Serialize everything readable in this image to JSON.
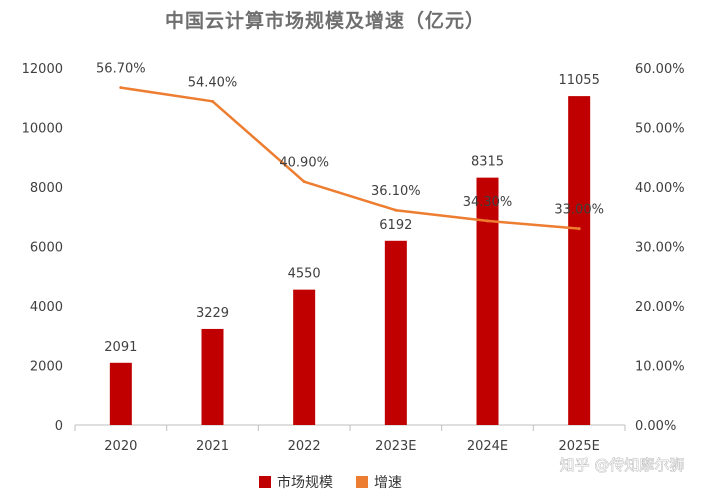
{
  "chart_data": {
    "type": "bar",
    "title": "中国云计算市场规模及增速（亿元）",
    "categories": [
      "2020",
      "2021",
      "2022",
      "2023E",
      "2024E",
      "2025E"
    ],
    "series": [
      {
        "name": "市场规模",
        "kind": "bar",
        "axis": "left",
        "color": "#c00000",
        "values": [
          2091,
          3229,
          4550,
          6192,
          8315,
          11055
        ],
        "labels": [
          "2091",
          "3229",
          "4550",
          "6192",
          "8315",
          "11055"
        ]
      },
      {
        "name": "增速",
        "kind": "line",
        "axis": "right",
        "color": "#ed7d31",
        "values": [
          56.7,
          54.4,
          40.9,
          36.1,
          34.3,
          33.0
        ],
        "labels": [
          "56.70%",
          "54.40%",
          "40.90%",
          "36.10%",
          "34.30%",
          "33.00%"
        ]
      }
    ],
    "y_left": {
      "min": 0,
      "max": 12000,
      "ticks": [
        "0",
        "2000",
        "4000",
        "6000",
        "8000",
        "10000",
        "12000"
      ]
    },
    "y_right": {
      "min": 0,
      "max": 60,
      "ticks": [
        "0.00%",
        "10.00%",
        "20.00%",
        "30.00%",
        "40.00%",
        "50.00%",
        "60.00%"
      ]
    },
    "xlabel": "",
    "ylabel": "",
    "grid": false,
    "legend_position": "bottom"
  },
  "watermark": "知乎 @传知摩尔狮"
}
